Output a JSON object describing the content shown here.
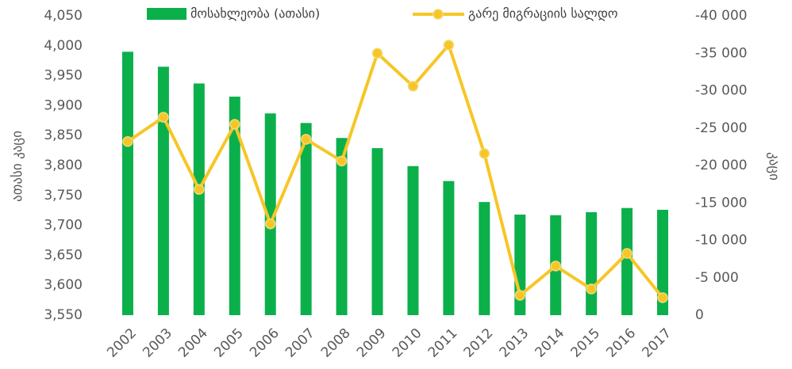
{
  "chart_data": {
    "type": "bar_line",
    "y_label": "ათასი კაცი",
    "y2_label": "კაცი",
    "categories": [
      "2002",
      "2003",
      "2004",
      "2005",
      "2006",
      "2007",
      "2008",
      "2009",
      "2010",
      "2011",
      "2012",
      "2013",
      "2014",
      "2015",
      "2016",
      "2017"
    ],
    "series": [
      {
        "name": "მოსახლეობა (ათასი)",
        "type": "bar",
        "color": "#0bb04b",
        "values": [
          3990,
          3965,
          3937,
          3915,
          3887,
          3871,
          3846,
          3829,
          3799,
          3774,
          3739,
          3718,
          3717,
          3722,
          3729,
          3726
        ]
      },
      {
        "name": "გარე მიგრაციის სალდო",
        "type": "line",
        "axis": "y2",
        "color": "#f7c626",
        "values": [
          -23200,
          -26450,
          -16800,
          -25500,
          -12200,
          -23500,
          -20600,
          -35000,
          -30600,
          -36100,
          -21600,
          -2650,
          -6560,
          -3500,
          -8250,
          -2330
        ]
      }
    ],
    "ylim": [
      3550,
      4050
    ],
    "yticks": [
      {
        "value": 3550,
        "label": "3,550"
      },
      {
        "value": 3600,
        "label": "3,600"
      },
      {
        "value": 3650,
        "label": "3,650"
      },
      {
        "value": 3700,
        "label": "3,700"
      },
      {
        "value": 3750,
        "label": "3,750"
      },
      {
        "value": 3800,
        "label": "3,800"
      },
      {
        "value": 3850,
        "label": "3,850"
      },
      {
        "value": 3900,
        "label": "3,900"
      },
      {
        "value": 3950,
        "label": "3,950"
      },
      {
        "value": 4000,
        "label": "4,000"
      },
      {
        "value": 4050,
        "label": "4,050"
      }
    ],
    "y2lim": [
      0,
      -40000
    ],
    "y2ticks": [
      0,
      {
        "value": -5000,
        "label": "-5 000"
      },
      {
        "value": -10000,
        "label": "-10 000"
      },
      {
        "value": -15000,
        "label": "-15 000"
      },
      {
        "value": -20000,
        "label": "-20 000"
      },
      {
        "value": -25000,
        "label": "-25 000"
      },
      {
        "value": -30000,
        "label": "-30 000"
      },
      {
        "value": -35000,
        "label": "-35 000"
      },
      {
        "value": -40000,
        "label": "-40 000"
      }
    ],
    "legend": "top"
  }
}
